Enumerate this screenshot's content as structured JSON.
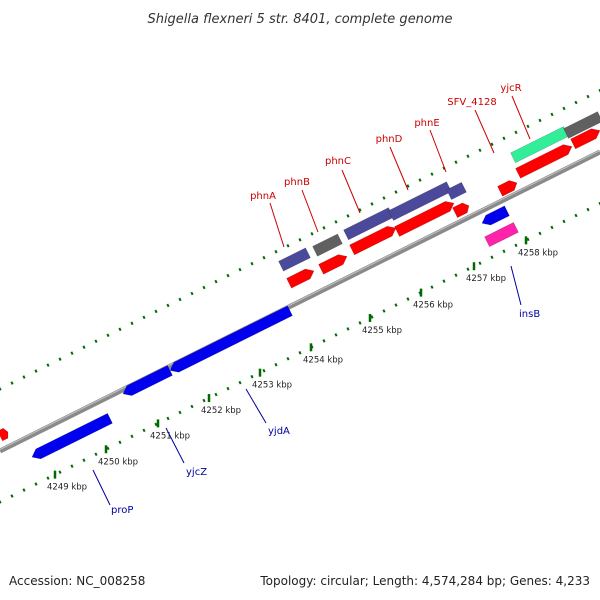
{
  "title": "Shigella flexneri 5 str. 8401, complete genome",
  "footer": {
    "accession": "Accession: NC_008258",
    "summary": "Topology: circular; Length: 4,574,284 bp; Genes: 4,233"
  },
  "colors": {
    "backbone": "#8a8a8a",
    "forward_gene": "#ff0000",
    "reverse_gene": "#0000ee",
    "forward_label": "#cc0000",
    "reverse_label": "#00009e",
    "cog_purple": "#4b4a9a",
    "cog_gray": "#606060",
    "cog_green": "#33ee99",
    "cog_pink": "#ff22aa",
    "tick": "#006a00"
  },
  "ticks": [
    "4249 kbp",
    "4250 kbp",
    "4251 kbp",
    "4252 kbp",
    "4253 kbp",
    "4254 kbp",
    "4255 kbp",
    "4256 kbp",
    "4257 kbp",
    "4258 kbp"
  ],
  "genes": [
    {
      "name": "proP",
      "strand": "reverse"
    },
    {
      "name": "yjcZ",
      "strand": "reverse"
    },
    {
      "name": "yjdA",
      "strand": "reverse"
    },
    {
      "name": "insB",
      "strand": "reverse"
    },
    {
      "name": "phnA",
      "strand": "forward"
    },
    {
      "name": "phnB",
      "strand": "forward"
    },
    {
      "name": "phnC",
      "strand": "forward"
    },
    {
      "name": "phnD",
      "strand": "forward"
    },
    {
      "name": "phnE",
      "strand": "forward"
    },
    {
      "name": "SFV_4128",
      "strand": "forward"
    },
    {
      "name": "yjcR",
      "strand": "forward"
    }
  ]
}
